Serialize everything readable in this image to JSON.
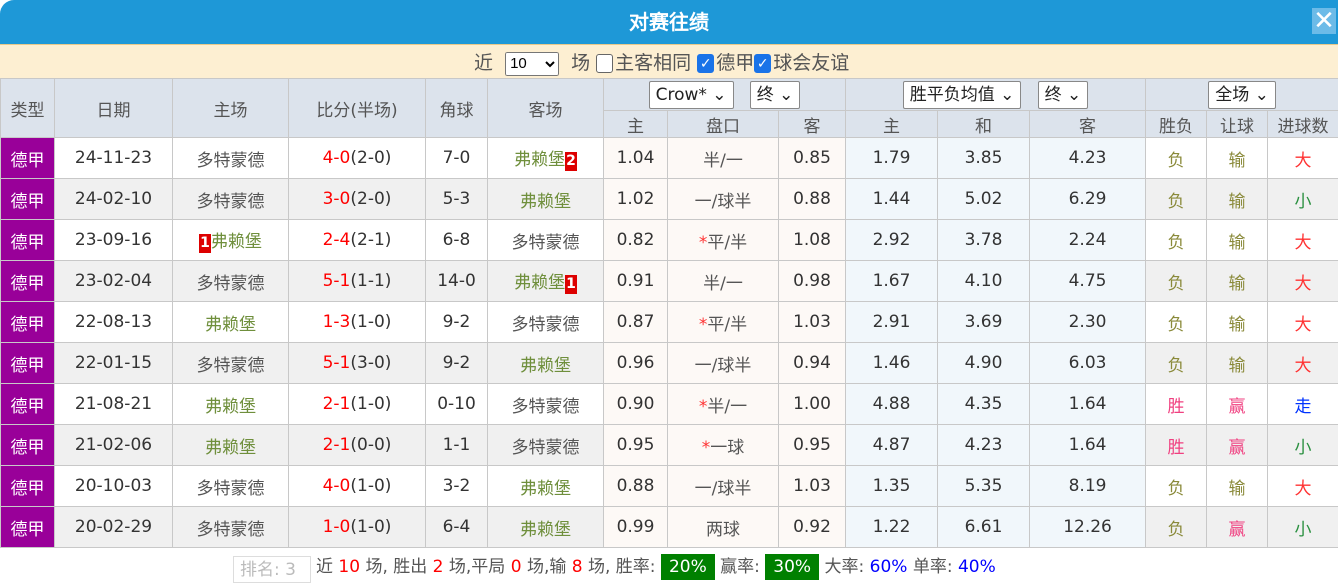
{
  "title": "对赛往绩",
  "filter": {
    "prefix": "近",
    "count": "10",
    "suffix": "场",
    "same_home": "主客相同",
    "same_home_checked": false,
    "league1": "德甲",
    "league1_checked": true,
    "league2": "球会友谊",
    "league2_checked": true
  },
  "headers": {
    "type": "类型",
    "date": "日期",
    "home": "主场",
    "score": "比分(半场)",
    "corner": "角球",
    "away": "客场",
    "asian_company": "Crow*",
    "asian_time": "终",
    "euro_company": "胜平负均值",
    "euro_time": "终",
    "range": "全场",
    "a_home": "主",
    "a_line": "盘口",
    "a_away": "客",
    "e_home": "主",
    "e_draw": "和",
    "e_away": "客",
    "wl": "胜负",
    "hc": "让球",
    "ou": "进球数"
  },
  "rows": [
    {
      "type": "德甲",
      "date": "24-11-23",
      "home": "多特蒙德",
      "home_rank": "",
      "home_c": "dk",
      "ft": "4-0",
      "ht": "(2-0)",
      "corner": "7-0",
      "away": "弗赖堡",
      "away_rank": "2",
      "away_c": "gn",
      "ah": "1.04",
      "star": "",
      "line": "半/一",
      "aa": "0.85",
      "eh": "1.79",
      "ed": "3.85",
      "ea": "4.23",
      "wl": "负",
      "hc": "输",
      "ou": "大"
    },
    {
      "type": "德甲",
      "date": "24-02-10",
      "home": "多特蒙德",
      "home_rank": "",
      "home_c": "dk",
      "ft": "3-0",
      "ht": "(2-0)",
      "corner": "5-3",
      "away": "弗赖堡",
      "away_rank": "",
      "away_c": "gn",
      "ah": "1.02",
      "star": "",
      "line": "一/球半",
      "aa": "0.88",
      "eh": "1.44",
      "ed": "5.02",
      "ea": "6.29",
      "wl": "负",
      "hc": "输",
      "ou": "小"
    },
    {
      "type": "德甲",
      "date": "23-09-16",
      "home": "弗赖堡",
      "home_rank": "1",
      "home_c": "gn",
      "ft": "2-4",
      "ht": "(2-1)",
      "corner": "6-8",
      "away": "多特蒙德",
      "away_rank": "",
      "away_c": "dk",
      "ah": "0.82",
      "star": "*",
      "line": "平/半",
      "aa": "1.08",
      "eh": "2.92",
      "ed": "3.78",
      "ea": "2.24",
      "wl": "负",
      "hc": "输",
      "ou": "大"
    },
    {
      "type": "德甲",
      "date": "23-02-04",
      "home": "多特蒙德",
      "home_rank": "",
      "home_c": "dk",
      "ft": "5-1",
      "ht": "(1-1)",
      "corner": "14-0",
      "away": "弗赖堡",
      "away_rank": "1",
      "away_c": "gn",
      "ah": "0.91",
      "star": "",
      "line": "半/一",
      "aa": "0.98",
      "eh": "1.67",
      "ed": "4.10",
      "ea": "4.75",
      "wl": "负",
      "hc": "输",
      "ou": "大"
    },
    {
      "type": "德甲",
      "date": "22-08-13",
      "home": "弗赖堡",
      "home_rank": "",
      "home_c": "gn",
      "ft": "1-3",
      "ht": "(1-0)",
      "corner": "9-2",
      "away": "多特蒙德",
      "away_rank": "",
      "away_c": "dk",
      "ah": "0.87",
      "star": "*",
      "line": "平/半",
      "aa": "1.03",
      "eh": "2.91",
      "ed": "3.69",
      "ea": "2.30",
      "wl": "负",
      "hc": "输",
      "ou": "大"
    },
    {
      "type": "德甲",
      "date": "22-01-15",
      "home": "多特蒙德",
      "home_rank": "",
      "home_c": "dk",
      "ft": "5-1",
      "ht": "(3-0)",
      "corner": "9-2",
      "away": "弗赖堡",
      "away_rank": "",
      "away_c": "gn",
      "ah": "0.96",
      "star": "",
      "line": "一/球半",
      "aa": "0.94",
      "eh": "1.46",
      "ed": "4.90",
      "ea": "6.03",
      "wl": "负",
      "hc": "输",
      "ou": "大"
    },
    {
      "type": "德甲",
      "date": "21-08-21",
      "home": "弗赖堡",
      "home_rank": "",
      "home_c": "gn",
      "ft": "2-1",
      "ht": "(1-0)",
      "corner": "0-10",
      "away": "多特蒙德",
      "away_rank": "",
      "away_c": "dk",
      "ah": "0.90",
      "star": "*",
      "line": "半/一",
      "aa": "1.00",
      "eh": "4.88",
      "ed": "4.35",
      "ea": "1.64",
      "wl": "胜",
      "hc": "赢",
      "ou": "走"
    },
    {
      "type": "德甲",
      "date": "21-02-06",
      "home": "弗赖堡",
      "home_rank": "",
      "home_c": "gn",
      "ft": "2-1",
      "ht": "(0-0)",
      "corner": "1-1",
      "away": "多特蒙德",
      "away_rank": "",
      "away_c": "dk",
      "ah": "0.95",
      "star": "*",
      "line": "一球",
      "aa": "0.95",
      "eh": "4.87",
      "ed": "4.23",
      "ea": "1.64",
      "wl": "胜",
      "hc": "赢",
      "ou": "小"
    },
    {
      "type": "德甲",
      "date": "20-10-03",
      "home": "多特蒙德",
      "home_rank": "",
      "home_c": "dk",
      "ft": "4-0",
      "ht": "(1-0)",
      "corner": "3-2",
      "away": "弗赖堡",
      "away_rank": "",
      "away_c": "gn",
      "ah": "0.88",
      "star": "",
      "line": "一/球半",
      "aa": "1.03",
      "eh": "1.35",
      "ed": "5.35",
      "ea": "8.19",
      "wl": "负",
      "hc": "输",
      "ou": "大"
    },
    {
      "type": "德甲",
      "date": "20-02-29",
      "home": "多特蒙德",
      "home_rank": "",
      "home_c": "dk",
      "ft": "1-0",
      "ht": "(1-0)",
      "corner": "6-4",
      "away": "弗赖堡",
      "away_rank": "",
      "away_c": "gn",
      "ah": "0.99",
      "star": "",
      "line": "两球",
      "aa": "0.92",
      "eh": "1.22",
      "ed": "6.61",
      "ea": "12.26",
      "wl": "负",
      "hc": "赢",
      "ou": "小"
    }
  ],
  "footer": {
    "rank": "排名: 3",
    "t1": "近",
    "games": "10",
    "t2": "场, 胜出",
    "wins": "2",
    "t3": "场,平局",
    "draws": "0",
    "t4": "场,输",
    "losses": "8",
    "t5": "场, 胜率:",
    "win_rate": "20%",
    "t6": "赢率:",
    "cover_rate": "30%",
    "t7": "大率:",
    "over_rate": "60%",
    "t8": "单率:",
    "odd_rate": "40%"
  },
  "colors": {
    "title_bar": "#1e98d7",
    "league": "#990099",
    "pct_badge": "#008000"
  }
}
